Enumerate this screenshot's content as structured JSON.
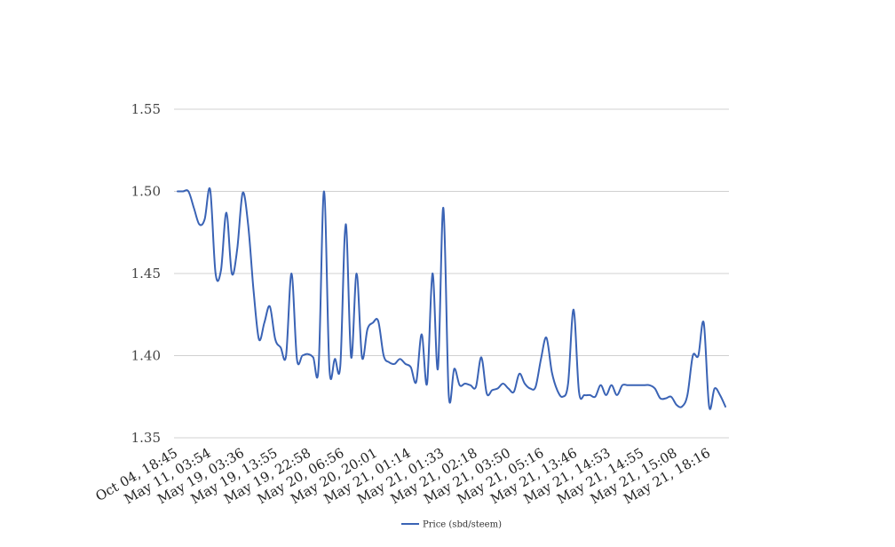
{
  "chart_data": {
    "type": "line",
    "title": "",
    "xlabel": "",
    "ylabel": "",
    "ylim": [
      1.35,
      1.55
    ],
    "yticks": [
      "1.35",
      "1.40",
      "1.45",
      "1.50",
      "1.55"
    ],
    "xtick_labels": [
      "Oct 04, 18:45",
      "May 11, 03:54",
      "May 19, 03:36",
      "May 19, 13:55",
      "May 19, 22:58",
      "May 20, 06:56",
      "May 20, 20:01",
      "May 21, 01:14",
      "May 21, 01:33",
      "May 21, 02:18",
      "May 21, 03:50",
      "May 21, 05:16",
      "May 21, 13:46",
      "May 21, 14:53",
      "May 21, 14:55",
      "May 21, 15:08",
      "May 21, 18:16"
    ],
    "grid": true,
    "legend_position": "bottom",
    "colors": {
      "line": "#3a63b5",
      "grid": "#d0d0d0"
    },
    "series": [
      {
        "name": "Price (sbd/steem)",
        "values": [
          1.5,
          1.5,
          1.5,
          1.49,
          1.48,
          1.483,
          1.501,
          1.45,
          1.452,
          1.487,
          1.45,
          1.465,
          1.499,
          1.48,
          1.44,
          1.41,
          1.42,
          1.43,
          1.41,
          1.405,
          1.4,
          1.45,
          1.398,
          1.4,
          1.401,
          1.399,
          1.393,
          1.5,
          1.392,
          1.398,
          1.394,
          1.48,
          1.399,
          1.45,
          1.399,
          1.416,
          1.42,
          1.421,
          1.4,
          1.396,
          1.395,
          1.398,
          1.395,
          1.393,
          1.384,
          1.413,
          1.383,
          1.45,
          1.392,
          1.49,
          1.376,
          1.392,
          1.382,
          1.383,
          1.382,
          1.381,
          1.399,
          1.377,
          1.379,
          1.38,
          1.383,
          1.38,
          1.378,
          1.389,
          1.383,
          1.38,
          1.381,
          1.398,
          1.411,
          1.39,
          1.379,
          1.375,
          1.383,
          1.428,
          1.378,
          1.376,
          1.376,
          1.375,
          1.382,
          1.376,
          1.382,
          1.376,
          1.382,
          1.382,
          1.382,
          1.382,
          1.382,
          1.382,
          1.38,
          1.374,
          1.374,
          1.375,
          1.37,
          1.369,
          1.376,
          1.4,
          1.4,
          1.42,
          1.369,
          1.38,
          1.376,
          1.369
        ]
      }
    ]
  }
}
